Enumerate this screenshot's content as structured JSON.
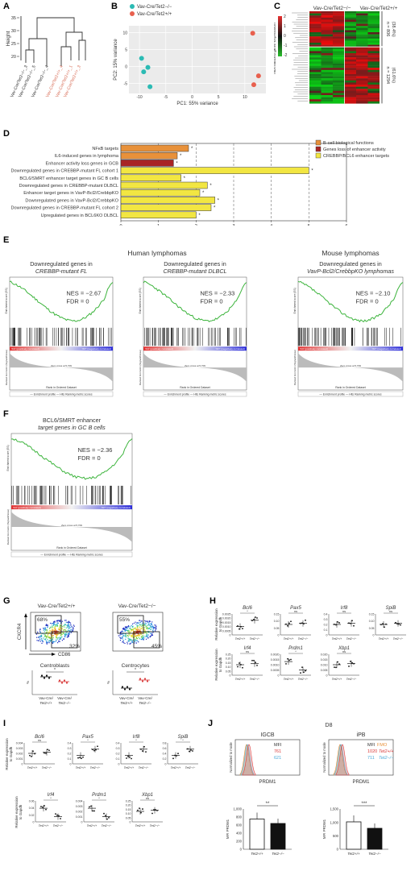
{
  "panels": {
    "A": {
      "label": "A",
      "ylabel": "Height",
      "yticks": [
        "35",
        "30",
        "25",
        "20"
      ],
      "leaves": [
        {
          "text": "Vav-Cre/Tet2−/−_3",
          "color": "#333"
        },
        {
          "text": "Vav-Cre/Tet2−/−_5",
          "color": "#333"
        },
        {
          "text": "Vav-Cre/Tet2−/−_4",
          "color": "#333"
        },
        {
          "text": "Vav-Cre/Tet2+/+_4",
          "color": "#d9705a"
        },
        {
          "text": "Vav-Cre/Tet2+/+_1",
          "color": "#d9705a"
        },
        {
          "text": "Vav-Cre/Tet2+/+_3",
          "color": "#d9705a"
        }
      ]
    },
    "B": {
      "label": "B",
      "legend": [
        "Vav-Cre/Tet2−/−",
        "Vav-Cre/Tet2+/+"
      ],
      "colors": [
        "#2bbbb4",
        "#e8604e"
      ],
      "xlabel": "PC1: 55% variance",
      "ylabel": "PC2: 15% variance",
      "xticks": [
        -10,
        -5,
        0,
        5,
        10
      ],
      "yticks": [
        10,
        5,
        0,
        -5
      ],
      "points": [
        {
          "x": -9.6,
          "y": 2.4,
          "g": 0
        },
        {
          "x": -8.4,
          "y": -0.3,
          "g": 0
        },
        {
          "x": -9.2,
          "y": -1.6,
          "g": 0
        },
        {
          "x": -8.0,
          "y": -6.0,
          "g": 0
        },
        {
          "x": 11.5,
          "y": 9.8,
          "g": 1
        },
        {
          "x": 12.6,
          "y": -2.8,
          "g": 1
        },
        {
          "x": 11.7,
          "y": -5.4,
          "g": 1
        }
      ]
    },
    "C": {
      "label": "C",
      "col1": "Vav-Cre/Tet2−/−",
      "col2": "Vav-Cre/Tet2+/+",
      "ylabel": "Normalized gene expression",
      "scale": [
        "2",
        "1",
        "0",
        "-1",
        "-2"
      ],
      "n1": "n = 806",
      "p1": "(38.4%)",
      "n2": "n = 1294",
      "p2": "(61.6%)"
    },
    "D": {
      "label": "D",
      "xlabel": "−log10 (FDR)",
      "xticks": [
        0,
        1,
        2,
        3,
        4,
        5,
        6
      ],
      "legend": [
        {
          "text": "B-cell biological functions",
          "color": "#e8913a"
        },
        {
          "text": "Genes loss of enhancer activity",
          "color": "#a82525"
        },
        {
          "text": "CREBBP/BCL6 enhancer targets",
          "color": "#f2e642"
        }
      ],
      "bars": [
        {
          "label": "NFκB targets",
          "value": 1.8,
          "cat": 0
        },
        {
          "label": "IL6-induced genes in lymphoma",
          "value": 1.5,
          "cat": 0
        },
        {
          "label": "Enhancer activity loss genes in GCB",
          "value": 1.4,
          "cat": 1
        },
        {
          "label": "Downregulated genes in CREBBP-mutant FL cohort 1",
          "value": 5.0,
          "cat": 2
        },
        {
          "label": "BCL6/SMRT enhancer target genes in GC B cells",
          "value": 1.6,
          "cat": 2
        },
        {
          "label": "Downregulated genes in CREBBP-mutant DLBCL",
          "value": 2.3,
          "cat": 2
        },
        {
          "label": "Enhancer target genes in VavP-Bcl2/CrebbpKO",
          "value": 2.1,
          "cat": 2
        },
        {
          "label": "Downregulated genes in VavP-Bcl2/CrebbpKO",
          "value": 2.5,
          "cat": 2
        },
        {
          "label": "Downregulated genes in CREBBP-mutant FL cohort 2",
          "value": 2.4,
          "cat": 2
        },
        {
          "label": "Upregulated genes in BCL6KO DLBCL",
          "value": 2.0,
          "cat": 2
        }
      ],
      "star": "*"
    },
    "E": {
      "label": "E",
      "human": "Human lymphomas",
      "mouse": "Mouse lymphomas",
      "plots": [
        {
          "title1": "Downregulated genes in",
          "title2": "CREBBP-mutant FL",
          "nes": "NES = −2.67",
          "fdr": "FDR = 0"
        },
        {
          "title1": "Downregulated genes in",
          "title2": "CREBBP-mutant DLBCL",
          "nes": "NES = −2.33",
          "fdr": "FDR = 0"
        },
        {
          "title1": "Downregulated genes in",
          "title2": "VavP-Bcl2/CrebbpKO lymphomas",
          "nes": "NES = −2.10",
          "fdr": "FDR = 0"
        }
      ],
      "axis_x": "Rank in Ordered Dataset",
      "axis_y": "Enrichment score (ES)",
      "axis_y2": "Ranked list metric (Signal2Noise)",
      "ko": "'KO' (positively correlated)",
      "wt": "'WT' (negatively correlated)",
      "zero": "Zero cross at 5,709",
      "legend": "— Enrichment profile  — Hits  Ranking metric scores"
    },
    "F": {
      "label": "F",
      "title1": "BCL6/SMRT enhancer",
      "title2": "target genes in GC B cells",
      "nes": "NES = −2.36",
      "fdr": "FDR = 0"
    },
    "G": {
      "label": "G",
      "left_title": "Vav-Cre/Tet2+/+",
      "right_title": "Vav-Cre/Tet2−/−",
      "y_axis": "CXCR4",
      "x_axis": "CD86",
      "left_top": "68%",
      "left_bot": "32%",
      "right_top": "55%",
      "right_bot": "45%",
      "cb": "Centroblasts",
      "cc": "Centrocytes",
      "pct": "%",
      "g1": "Vav-Cre/",
      "g1b": "Tet2+/+",
      "g2": "Vav-Cre/",
      "g2b": "Tet2−/−",
      "star": "*"
    },
    "H": {
      "label": "H",
      "ylabel1": "Relative expression",
      "ylabel2": "to Gapdh",
      "genes_top": [
        "Bcl6",
        "Pax5",
        "Irf8",
        "SpiB"
      ],
      "genes_bot": [
        "Irf4",
        "Prdm1",
        "Xbp1"
      ],
      "sig_top": [
        "*",
        "ns",
        "ns",
        "ns"
      ],
      "sig_bot": [
        "ns",
        "*",
        "ns"
      ],
      "yt1": [
        "0.0025",
        "0.0020",
        "0.0015",
        "0.0010",
        "0.0005",
        "0"
      ],
      "yt2": [
        "0.15",
        "0.10",
        "0.05",
        "0"
      ],
      "yt3": [
        "0.4",
        "0.3",
        "0.2",
        "0.1",
        "0"
      ],
      "yt4": [
        "0.15",
        "0.10",
        "0.05",
        "0"
      ],
      "yt5": [
        "0.25",
        "0.20",
        "0.15",
        "0.10",
        "0.05",
        "0"
      ],
      "yt6": [
        "0.0020",
        "0.0015",
        "0.0010",
        "0.0005",
        "0"
      ],
      "yt7": [
        "0.020",
        "0.015",
        "0.010",
        "0.005",
        "0"
      ],
      "tet_wt": "Tet2+/+",
      "tet_ko": "Tet2−/−"
    },
    "I": {
      "label": "I",
      "ylabel1": "Relative expression",
      "ylabel2": "to Gapdh",
      "genes_top": [
        "Bcl6",
        "Pax5",
        "Irf8",
        "SpiB"
      ],
      "genes_bot": [
        "Irf4",
        "Prdm1",
        "Xbp1"
      ],
      "sig_top": [
        "ns",
        "*",
        "*",
        "*"
      ],
      "sig_bot": [
        "*",
        "*",
        "ns"
      ],
      "yt1": [
        "0.004",
        "0.003",
        "0.002",
        "0.001",
        "0"
      ],
      "yt2": [
        "0.4",
        "0.3",
        "0.2",
        "0.1",
        "0"
      ],
      "yt3": [
        "0.4",
        "0.3",
        "0.2",
        "0.1",
        "0"
      ],
      "yt4": [
        "0.8",
        "0.6",
        "0.4",
        "0.2",
        "0"
      ],
      "yt5": [
        "0.06",
        "0.04",
        "0.02",
        "0"
      ],
      "yt6": [
        "0.004",
        "0.003",
        "0.002",
        "0.001",
        "0"
      ],
      "yt7": [
        "0.25",
        "0.20",
        "0.15",
        "0.10",
        "0.05",
        "0"
      ],
      "tet_wt": "Tet2+/+",
      "tet_ko": "Tet2−/−"
    },
    "J": {
      "label": "J",
      "day": "D8",
      "t1": "IGCB",
      "t2": "iPB",
      "mfi": "MFI",
      "fmo": "FMO",
      "wt": "Tet2+/+",
      "ko": "Tet2−/−",
      "v1a": "761",
      "v1b": "621",
      "v2a": "1020",
      "v2b": "711",
      "xlabel": "PRDM1",
      "ylabel": "Normalized to mode",
      "bar_ylabel": "MFI PRDM1",
      "b1": {
        "wt": 750,
        "ko": 640,
        "sig": "**",
        "yt": [
          "1,000",
          "800",
          "600",
          "400",
          "200",
          "0"
        ]
      },
      "b2": {
        "wt": 1020,
        "ko": 780,
        "sig": "***",
        "yt": [
          "1,500",
          "1,000",
          "500",
          "0"
        ]
      },
      "colors": {
        "fmo": "#e8913a",
        "wt": "#d93a3a",
        "ko": "#4aa8d8"
      }
    }
  }
}
